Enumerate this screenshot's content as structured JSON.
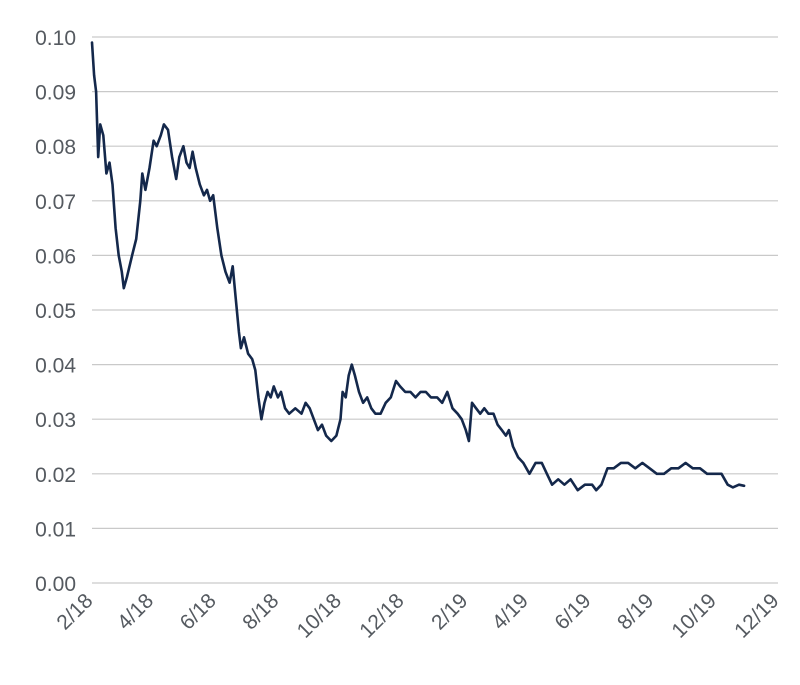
{
  "chart_data": {
    "type": "line",
    "title": "",
    "xlabel": "",
    "ylabel": "",
    "ylim": [
      0,
      0.1
    ],
    "yticks": [
      "0.10",
      "0.09",
      "0.08",
      "0.07",
      "0.06",
      "0.05",
      "0.04",
      "0.03",
      "0.02",
      "0.01",
      "0.00"
    ],
    "xticks": [
      "2/18",
      "4/18",
      "6/18",
      "8/18",
      "10/18",
      "12/18",
      "2/19",
      "4/19",
      "6/19",
      "8/19",
      "10/19",
      "12/19"
    ],
    "xrange_months": [
      "2018-02",
      "2019-12"
    ],
    "grid": true,
    "legend": "none",
    "series_color": "#14284b",
    "series": [
      {
        "name": "",
        "points": [
          [
            "2018-02-01",
            0.099
          ],
          [
            "2018-02-03",
            0.093
          ],
          [
            "2018-02-05",
            0.09
          ],
          [
            "2018-02-07",
            0.078
          ],
          [
            "2018-02-09",
            0.084
          ],
          [
            "2018-02-12",
            0.082
          ],
          [
            "2018-02-15",
            0.075
          ],
          [
            "2018-02-18",
            0.077
          ],
          [
            "2018-02-21",
            0.073
          ],
          [
            "2018-02-24",
            0.065
          ],
          [
            "2018-02-27",
            0.06
          ],
          [
            "2018-03-02",
            0.057
          ],
          [
            "2018-03-04",
            0.054
          ],
          [
            "2018-03-07",
            0.056
          ],
          [
            "2018-03-12",
            0.06
          ],
          [
            "2018-03-16",
            0.063
          ],
          [
            "2018-03-20",
            0.07
          ],
          [
            "2018-03-22",
            0.075
          ],
          [
            "2018-03-25",
            0.072
          ],
          [
            "2018-03-29",
            0.076
          ],
          [
            "2018-04-02",
            0.081
          ],
          [
            "2018-04-05",
            0.08
          ],
          [
            "2018-04-09",
            0.082
          ],
          [
            "2018-04-12",
            0.084
          ],
          [
            "2018-04-16",
            0.083
          ],
          [
            "2018-04-20",
            0.078
          ],
          [
            "2018-04-24",
            0.074
          ],
          [
            "2018-04-27",
            0.078
          ],
          [
            "2018-05-01",
            0.08
          ],
          [
            "2018-05-04",
            0.077
          ],
          [
            "2018-05-07",
            0.076
          ],
          [
            "2018-05-10",
            0.079
          ],
          [
            "2018-05-13",
            0.076
          ],
          [
            "2018-05-17",
            0.073
          ],
          [
            "2018-05-21",
            0.071
          ],
          [
            "2018-05-24",
            0.072
          ],
          [
            "2018-05-27",
            0.07
          ],
          [
            "2018-05-30",
            0.071
          ],
          [
            "2018-06-03",
            0.065
          ],
          [
            "2018-06-07",
            0.06
          ],
          [
            "2018-06-11",
            0.057
          ],
          [
            "2018-06-15",
            0.055
          ],
          [
            "2018-06-18",
            0.058
          ],
          [
            "2018-06-21",
            0.052
          ],
          [
            "2018-06-24",
            0.046
          ],
          [
            "2018-06-26",
            0.043
          ],
          [
            "2018-06-29",
            0.045
          ],
          [
            "2018-07-03",
            0.042
          ],
          [
            "2018-07-07",
            0.041
          ],
          [
            "2018-07-10",
            0.039
          ],
          [
            "2018-07-13",
            0.034
          ],
          [
            "2018-07-16",
            0.03
          ],
          [
            "2018-07-19",
            0.033
          ],
          [
            "2018-07-22",
            0.035
          ],
          [
            "2018-07-25",
            0.034
          ],
          [
            "2018-07-28",
            0.036
          ],
          [
            "2018-08-01",
            0.034
          ],
          [
            "2018-08-04",
            0.035
          ],
          [
            "2018-08-08",
            0.032
          ],
          [
            "2018-08-12",
            0.031
          ],
          [
            "2018-08-18",
            0.032
          ],
          [
            "2018-08-24",
            0.031
          ],
          [
            "2018-08-28",
            0.033
          ],
          [
            "2018-09-01",
            0.032
          ],
          [
            "2018-09-05",
            0.03
          ],
          [
            "2018-09-09",
            0.028
          ],
          [
            "2018-09-13",
            0.029
          ],
          [
            "2018-09-17",
            0.027
          ],
          [
            "2018-09-22",
            0.026
          ],
          [
            "2018-09-27",
            0.027
          ],
          [
            "2018-10-01",
            0.03
          ],
          [
            "2018-10-03",
            0.035
          ],
          [
            "2018-10-06",
            0.034
          ],
          [
            "2018-10-09",
            0.038
          ],
          [
            "2018-10-12",
            0.04
          ],
          [
            "2018-10-15",
            0.038
          ],
          [
            "2018-10-19",
            0.035
          ],
          [
            "2018-10-23",
            0.033
          ],
          [
            "2018-10-27",
            0.034
          ],
          [
            "2018-10-31",
            0.032
          ],
          [
            "2018-11-04",
            0.031
          ],
          [
            "2018-11-09",
            0.031
          ],
          [
            "2018-11-14",
            0.033
          ],
          [
            "2018-11-19",
            0.034
          ],
          [
            "2018-11-24",
            0.037
          ],
          [
            "2018-11-28",
            0.036
          ],
          [
            "2018-12-03",
            0.035
          ],
          [
            "2018-12-08",
            0.035
          ],
          [
            "2018-12-13",
            0.034
          ],
          [
            "2018-12-18",
            0.035
          ],
          [
            "2018-12-23",
            0.035
          ],
          [
            "2018-12-28",
            0.034
          ],
          [
            "2019-01-03",
            0.034
          ],
          [
            "2019-01-08",
            0.033
          ],
          [
            "2019-01-13",
            0.035
          ],
          [
            "2019-01-18",
            0.032
          ],
          [
            "2019-01-23",
            0.031
          ],
          [
            "2019-01-27",
            0.03
          ],
          [
            "2019-01-31",
            0.028
          ],
          [
            "2019-02-03",
            0.026
          ],
          [
            "2019-02-06",
            0.033
          ],
          [
            "2019-02-10",
            0.032
          ],
          [
            "2019-02-14",
            0.031
          ],
          [
            "2019-02-18",
            0.032
          ],
          [
            "2019-02-22",
            0.031
          ],
          [
            "2019-02-27",
            0.031
          ],
          [
            "2019-03-03",
            0.029
          ],
          [
            "2019-03-07",
            0.028
          ],
          [
            "2019-03-11",
            0.027
          ],
          [
            "2019-03-14",
            0.028
          ],
          [
            "2019-03-18",
            0.025
          ],
          [
            "2019-03-23",
            0.023
          ],
          [
            "2019-03-28",
            0.022
          ],
          [
            "2019-04-03",
            0.02
          ],
          [
            "2019-04-09",
            0.022
          ],
          [
            "2019-04-15",
            0.022
          ],
          [
            "2019-04-20",
            0.02
          ],
          [
            "2019-04-25",
            0.018
          ],
          [
            "2019-05-01",
            0.019
          ],
          [
            "2019-05-07",
            0.018
          ],
          [
            "2019-05-13",
            0.019
          ],
          [
            "2019-05-20",
            0.017
          ],
          [
            "2019-05-27",
            0.018
          ],
          [
            "2019-06-03",
            0.018
          ],
          [
            "2019-06-07",
            0.017
          ],
          [
            "2019-06-12",
            0.018
          ],
          [
            "2019-06-18",
            0.021
          ],
          [
            "2019-06-24",
            0.021
          ],
          [
            "2019-07-01",
            0.022
          ],
          [
            "2019-07-08",
            0.022
          ],
          [
            "2019-07-15",
            0.021
          ],
          [
            "2019-07-22",
            0.022
          ],
          [
            "2019-07-29",
            0.021
          ],
          [
            "2019-08-05",
            0.02
          ],
          [
            "2019-08-12",
            0.02
          ],
          [
            "2019-08-19",
            0.021
          ],
          [
            "2019-08-26",
            0.021
          ],
          [
            "2019-09-02",
            0.022
          ],
          [
            "2019-09-09",
            0.021
          ],
          [
            "2019-09-16",
            0.021
          ],
          [
            "2019-09-23",
            0.02
          ],
          [
            "2019-09-30",
            0.02
          ],
          [
            "2019-10-07",
            0.02
          ],
          [
            "2019-10-13",
            0.018
          ],
          [
            "2019-10-18",
            0.0175
          ],
          [
            "2019-10-24",
            0.018
          ],
          [
            "2019-10-29",
            0.0178
          ]
        ]
      }
    ]
  }
}
